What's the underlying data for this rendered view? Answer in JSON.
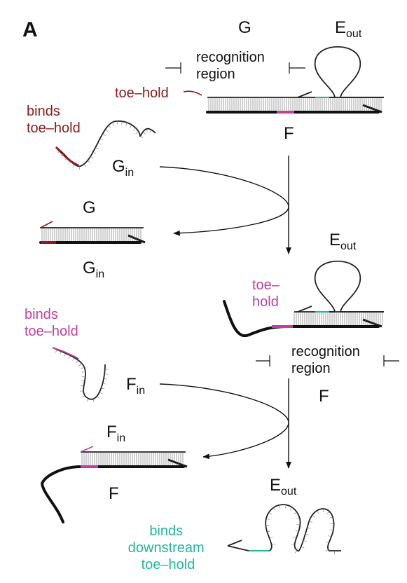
{
  "panel_label": "A",
  "colors": {
    "toehold_G": "#8b1a1a",
    "toehold_F": "#c040a0",
    "toehold_E": "#1fb89a",
    "strand": "#222222"
  },
  "labels": {
    "G_top": "G",
    "E_out_top": {
      "main": "E",
      "sub": "out"
    },
    "recognition_region_1": [
      "recognition",
      "region"
    ],
    "toehold_1": "toe–hold",
    "binds_toehold_1": [
      "binds",
      "toe–hold"
    ],
    "F_top": "F",
    "G_in_1": {
      "main": "G",
      "sub": "in"
    },
    "G_mid": "G",
    "G_in_2": {
      "main": "G",
      "sub": "in"
    },
    "E_out_mid": {
      "main": "E",
      "sub": "out"
    },
    "toehold_2": [
      "toe–",
      "hold"
    ],
    "binds_toehold_2": [
      "binds",
      "toe–hold"
    ],
    "recognition_region_2": [
      "recognition",
      "region"
    ],
    "F_in_1": {
      "main": "F",
      "sub": "in"
    },
    "F_mid": "F",
    "F_in_2": {
      "main": "F",
      "sub": "in"
    },
    "F_bottom": "F",
    "E_out_bottom": {
      "main": "E",
      "sub": "out"
    },
    "binds_downstream": [
      "binds",
      "downstream",
      "toe–hold"
    ]
  }
}
